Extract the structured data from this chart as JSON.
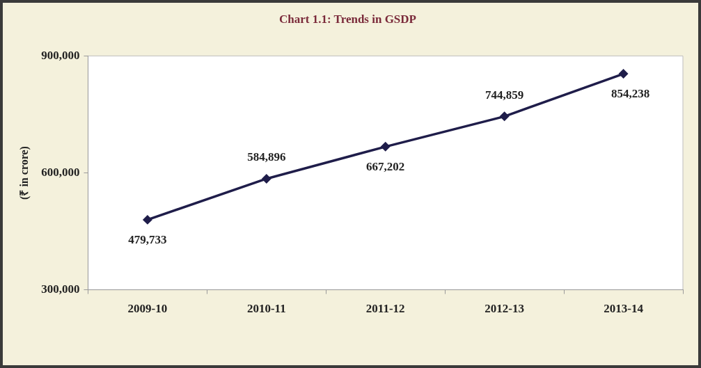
{
  "chart_data": {
    "type": "line",
    "title": "Chart 1.1: Trends in GSDP",
    "ylabel": "(₹ in crore)",
    "categories": [
      "2009-10",
      "2010-11",
      "2011-12",
      "2012-13",
      "2013-14"
    ],
    "series": [
      {
        "color": "#1f1d4a",
        "values": [
          479733,
          584896,
          667202,
          744859,
          854238
        ],
        "value_labels": [
          "479,733",
          "584,896",
          "667,202",
          "744,859",
          "854,238"
        ]
      }
    ],
    "ylim": [
      300000,
      900000
    ],
    "yticks": [
      {
        "value": 300000,
        "label": "300,000"
      },
      {
        "value": 600000,
        "label": "600,000"
      },
      {
        "value": 900000,
        "label": "900,000"
      }
    ],
    "marker": "diamond",
    "line_style": "solid",
    "grid": false,
    "legend": false
  }
}
